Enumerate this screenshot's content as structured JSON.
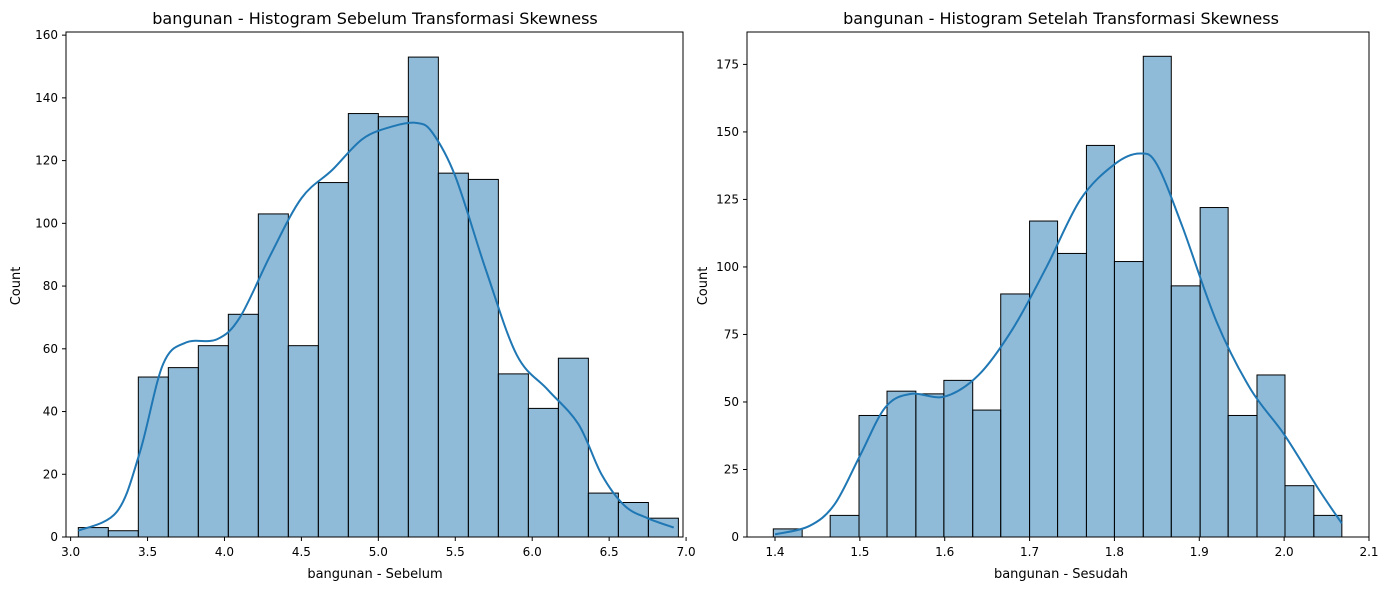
{
  "chart_data": [
    {
      "type": "bar",
      "title": "bangunan - Histogram Sebelum Transformasi Skewness",
      "xlabel": "bangunan - Sebelum",
      "ylabel": "Count",
      "xlim": [
        2.97,
        6.98
      ],
      "ylim": [
        0,
        161
      ],
      "xticks": [
        3.0,
        3.5,
        4.0,
        4.5,
        5.0,
        5.5,
        6.0,
        6.5,
        7.0
      ],
      "xtick_labels": [
        "3.0",
        "3.5",
        "4.0",
        "4.5",
        "5.0",
        "5.5",
        "6.0",
        "6.5",
        "7.0"
      ],
      "yticks": [
        0,
        20,
        40,
        60,
        80,
        100,
        120,
        140,
        160
      ],
      "ytick_labels": [
        "0",
        "20",
        "40",
        "60",
        "80",
        "100",
        "120",
        "140",
        "160"
      ],
      "bin_edges": [
        3.05,
        3.245,
        3.44,
        3.635,
        3.83,
        4.025,
        4.22,
        4.415,
        4.61,
        4.805,
        5.0,
        5.195,
        5.39,
        5.585,
        5.78,
        5.975,
        6.17,
        6.365,
        6.56,
        6.755,
        6.95
      ],
      "values": [
        3,
        2,
        51,
        54,
        61,
        71,
        103,
        61,
        113,
        135,
        134,
        153,
        116,
        114,
        52,
        41,
        57,
        14,
        11,
        6
      ],
      "kde": {
        "x": [
          3.05,
          3.3,
          3.45,
          3.6,
          3.75,
          3.95,
          4.1,
          4.3,
          4.5,
          4.7,
          4.9,
          5.1,
          5.25,
          5.35,
          5.5,
          5.7,
          5.9,
          6.1,
          6.3,
          6.45,
          6.6,
          6.75,
          6.92
        ],
        "y": [
          2,
          8,
          27,
          55,
          62,
          63,
          70,
          90,
          108,
          117,
          127,
          131,
          132,
          129,
          115,
          85,
          58,
          47,
          36,
          20,
          10,
          6,
          3
        ]
      },
      "grid": false,
      "bar_color": "#1f77b4"
    },
    {
      "type": "bar",
      "title": "bangunan - Histogram Setelah Transformasi Skewness",
      "xlabel": "bangunan - Sesudah",
      "ylabel": "Count",
      "xlim": [
        1.367,
        2.1
      ],
      "ylim": [
        0,
        187
      ],
      "xticks": [
        1.4,
        1.5,
        1.6,
        1.7,
        1.8,
        1.9,
        2.0,
        2.1
      ],
      "xtick_labels": [
        "1.4",
        "1.5",
        "1.6",
        "1.7",
        "1.8",
        "1.9",
        "2.0",
        "2.1"
      ],
      "yticks": [
        0,
        25,
        50,
        75,
        100,
        125,
        150,
        175
      ],
      "ytick_labels": [
        "0",
        "25",
        "50",
        "75",
        "100",
        "125",
        "150",
        "175"
      ],
      "bin_edges": [
        1.398,
        1.432,
        1.465,
        1.499,
        1.532,
        1.566,
        1.599,
        1.633,
        1.666,
        1.7,
        1.733,
        1.767,
        1.8,
        1.834,
        1.867,
        1.901,
        1.934,
        1.968,
        2.001,
        2.035,
        2.068
      ],
      "values": [
        3,
        0,
        8,
        45,
        54,
        53,
        58,
        47,
        90,
        117,
        105,
        145,
        102,
        178,
        93,
        122,
        45,
        60,
        19,
        8
      ],
      "kde": {
        "x": [
          1.4,
          1.44,
          1.47,
          1.5,
          1.53,
          1.56,
          1.6,
          1.64,
          1.68,
          1.72,
          1.76,
          1.8,
          1.83,
          1.85,
          1.88,
          1.92,
          1.96,
          2.0,
          2.04,
          2.068
        ],
        "y": [
          1,
          4,
          12,
          30,
          48,
          53,
          52,
          60,
          77,
          100,
          125,
          138,
          142,
          138,
          115,
          80,
          55,
          38,
          18,
          5
        ]
      },
      "grid": false,
      "bar_color": "#1f77b4"
    }
  ]
}
